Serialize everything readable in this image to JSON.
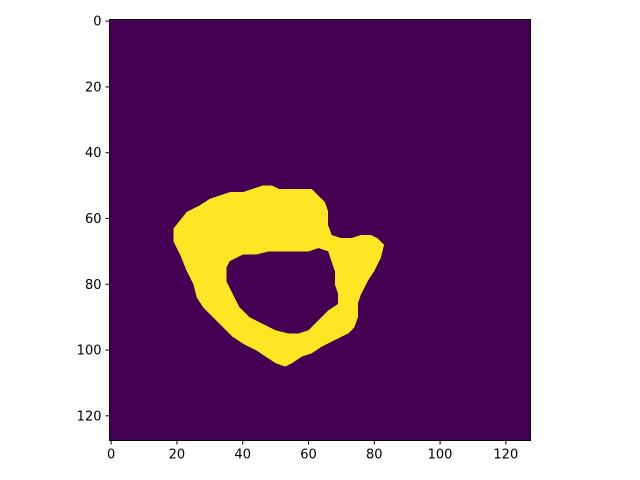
{
  "chart_data": {
    "type": "heatmap",
    "title": "",
    "xlabel": "",
    "ylabel": "",
    "grid": false,
    "legend": "none",
    "image_size": [
      128,
      128
    ],
    "xlim": [
      -0.5,
      127.5
    ],
    "ylim": [
      127.5,
      -0.5
    ],
    "x_ticks": [
      0,
      20,
      40,
      60,
      80,
      100,
      120
    ],
    "y_ticks": [
      0,
      20,
      40,
      60,
      80,
      100,
      120
    ],
    "x_tick_labels": [
      "0",
      "20",
      "40",
      "60",
      "80",
      "100",
      "120"
    ],
    "y_tick_labels": [
      "0",
      "20",
      "40",
      "60",
      "80",
      "100",
      "120"
    ],
    "colormap": "viridis",
    "values_present": [
      0,
      1
    ],
    "colors": {
      "background": "#440154",
      "foreground": "#fde725"
    },
    "mask_outer_boundary": [
      [
        19,
        63
      ],
      [
        23,
        58
      ],
      [
        27,
        56
      ],
      [
        30,
        54
      ],
      [
        33,
        53
      ],
      [
        36,
        52
      ],
      [
        40,
        52
      ],
      [
        43,
        51
      ],
      [
        46,
        50
      ],
      [
        49,
        50
      ],
      [
        51,
        51
      ],
      [
        55,
        51
      ],
      [
        58,
        51
      ],
      [
        61,
        51
      ],
      [
        63,
        53
      ],
      [
        65,
        55
      ],
      [
        66,
        58
      ],
      [
        66,
        62
      ],
      [
        67,
        65
      ],
      [
        70,
        66
      ],
      [
        73,
        66
      ],
      [
        76,
        65
      ],
      [
        79,
        65
      ],
      [
        81,
        66
      ],
      [
        83,
        68
      ],
      [
        82,
        72
      ],
      [
        80,
        76
      ],
      [
        78,
        79
      ],
      [
        76,
        83
      ],
      [
        75,
        86
      ],
      [
        75,
        90
      ],
      [
        74,
        93
      ],
      [
        72,
        95
      ],
      [
        68,
        97
      ],
      [
        64,
        99
      ],
      [
        61,
        101
      ],
      [
        58,
        102
      ],
      [
        55,
        104
      ],
      [
        53,
        105
      ],
      [
        50,
        104
      ],
      [
        47,
        102
      ],
      [
        44,
        100
      ],
      [
        40,
        98
      ],
      [
        37,
        96
      ],
      [
        34,
        93
      ],
      [
        31,
        90
      ],
      [
        28,
        87
      ],
      [
        26,
        84
      ],
      [
        25,
        80
      ],
      [
        23,
        76
      ],
      [
        21,
        71
      ],
      [
        19,
        67
      ]
    ],
    "mask_hole_boundary": [
      [
        36,
        73
      ],
      [
        40,
        71
      ],
      [
        44,
        71
      ],
      [
        48,
        70
      ],
      [
        52,
        70
      ],
      [
        56,
        70
      ],
      [
        60,
        70
      ],
      [
        63,
        69
      ],
      [
        66,
        70
      ],
      [
        67,
        73
      ],
      [
        68,
        76
      ],
      [
        68,
        80
      ],
      [
        69,
        83
      ],
      [
        69,
        86
      ],
      [
        66,
        88
      ],
      [
        64,
        90
      ],
      [
        62,
        92
      ],
      [
        60,
        94
      ],
      [
        57,
        95
      ],
      [
        54,
        95
      ],
      [
        50,
        94
      ],
      [
        46,
        92
      ],
      [
        42,
        90
      ],
      [
        39,
        87
      ],
      [
        37,
        83
      ],
      [
        35,
        79
      ],
      [
        35,
        75
      ]
    ]
  }
}
